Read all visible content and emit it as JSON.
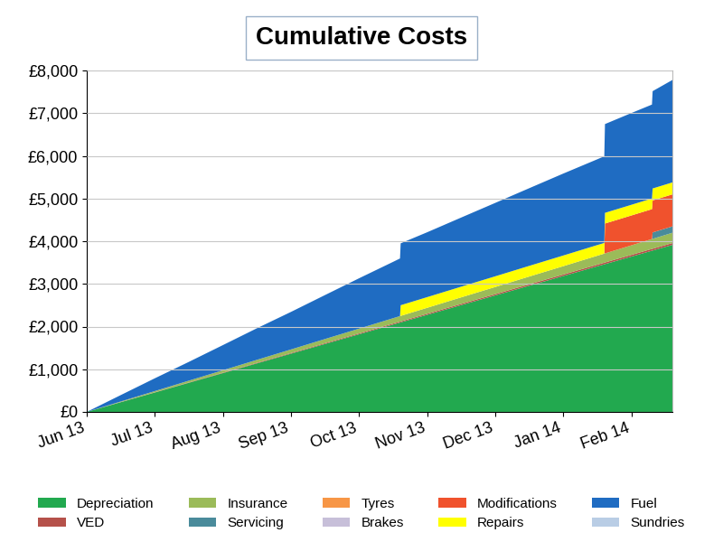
{
  "chart_data": {
    "type": "area",
    "title": "Cumulative Costs",
    "stacked": true,
    "grid": true,
    "legend": "lower center",
    "x": [
      0,
      0.5,
      1,
      1.5,
      2,
      2.5,
      3,
      3.5,
      4,
      4.5,
      4.6,
      4.61,
      5,
      5.5,
      6,
      6.5,
      7,
      7.5,
      7.6,
      7.61,
      8,
      8.3,
      8.31,
      8.6
    ],
    "xlim": [
      0,
      8.6
    ],
    "xticks": [
      {
        "value": 0,
        "label": "Jun 13"
      },
      {
        "value": 1,
        "label": "Jul 13"
      },
      {
        "value": 2,
        "label": "Aug 13"
      },
      {
        "value": 3,
        "label": "Sep 13"
      },
      {
        "value": 4,
        "label": "Oct 13"
      },
      {
        "value": 5,
        "label": "Nov 13"
      },
      {
        "value": 6,
        "label": "Dec 13"
      },
      {
        "value": 7,
        "label": "Jan 14"
      },
      {
        "value": 8,
        "label": "Feb 14"
      }
    ],
    "ylim": [
      0,
      8000
    ],
    "yticks": [
      {
        "value": 0,
        "label": "£0"
      },
      {
        "value": 1000,
        "label": "£1,000"
      },
      {
        "value": 2000,
        "label": "£2,000"
      },
      {
        "value": 3000,
        "label": "£3,000"
      },
      {
        "value": 4000,
        "label": "£4,000"
      },
      {
        "value": 5000,
        "label": "£5,000"
      },
      {
        "value": 6000,
        "label": "£6,000"
      },
      {
        "value": 7000,
        "label": "£7,000"
      },
      {
        "value": 8000,
        "label": "£8,000"
      }
    ],
    "series": [
      {
        "name": "Depreciation",
        "color": "#22a94f",
        "values": [
          0,
          228,
          455,
          683,
          910,
          1138,
          1365,
          1593,
          1820,
          2048,
          2093,
          2098,
          2275,
          2503,
          2730,
          2958,
          3185,
          3413,
          3458,
          3463,
          3640,
          3777,
          3781,
          3913
        ]
      },
      {
        "name": "VED",
        "color": "#b5514a",
        "values": [
          0,
          3,
          5,
          8,
          10,
          13,
          15,
          18,
          20,
          23,
          23,
          23,
          25,
          28,
          30,
          33,
          35,
          38,
          38,
          38,
          40,
          42,
          42,
          43
        ]
      },
      {
        "name": "Insurance",
        "color": "#9bbb59",
        "values": [
          0,
          14,
          28,
          42,
          56,
          70,
          84,
          98,
          112,
          126,
          129,
          129,
          140,
          154,
          168,
          182,
          196,
          210,
          213,
          213,
          224,
          232,
          232,
          241
        ]
      },
      {
        "name": "Servicing",
        "color": "#4a8b9b",
        "values": [
          0,
          0,
          0,
          0,
          0,
          0,
          0,
          0,
          0,
          0,
          0,
          0,
          0,
          0,
          0,
          0,
          0,
          0,
          0,
          0,
          0,
          0,
          150,
          150
        ]
      },
      {
        "name": "Tyres",
        "color": "#f79646",
        "values": [
          0,
          0,
          0,
          0,
          0,
          0,
          0,
          0,
          0,
          0,
          0,
          0,
          0,
          0,
          0,
          0,
          0,
          0,
          0,
          0,
          0,
          0,
          0,
          0
        ]
      },
      {
        "name": "Brakes",
        "color": "#c7bfd9",
        "values": [
          0,
          0,
          0,
          0,
          0,
          0,
          0,
          0,
          0,
          0,
          0,
          0,
          0,
          0,
          0,
          0,
          0,
          0,
          0,
          0,
          0,
          0,
          0,
          0
        ]
      },
      {
        "name": "Modifications",
        "color": "#f0522d",
        "values": [
          0,
          0,
          0,
          0,
          0,
          0,
          0,
          0,
          0,
          0,
          0,
          0,
          0,
          0,
          0,
          0,
          0,
          0,
          0,
          700,
          700,
          700,
          750,
          750
        ]
      },
      {
        "name": "Repairs",
        "color": "#ffff00",
        "values": [
          0,
          0,
          0,
          0,
          0,
          0,
          0,
          0,
          0,
          0,
          0,
          250,
          250,
          250,
          250,
          250,
          250,
          250,
          250,
          250,
          250,
          250,
          280,
          280
        ]
      },
      {
        "name": "Fuel",
        "color": "#1f6cc2",
        "values": [
          0,
          150,
          300,
          440,
          590,
          740,
          880,
          1030,
          1180,
          1320,
          1350,
          1450,
          1520,
          1620,
          1720,
          1820,
          1920,
          2010,
          2030,
          2080,
          2150,
          2200,
          2280,
          2400
        ]
      },
      {
        "name": "Sundries",
        "color": "#b9cde5",
        "values": [
          0,
          0,
          0,
          0,
          0,
          0,
          0,
          0,
          0,
          0,
          0,
          0,
          0,
          0,
          0,
          0,
          0,
          0,
          0,
          0,
          0,
          0,
          0,
          0
        ]
      }
    ]
  }
}
